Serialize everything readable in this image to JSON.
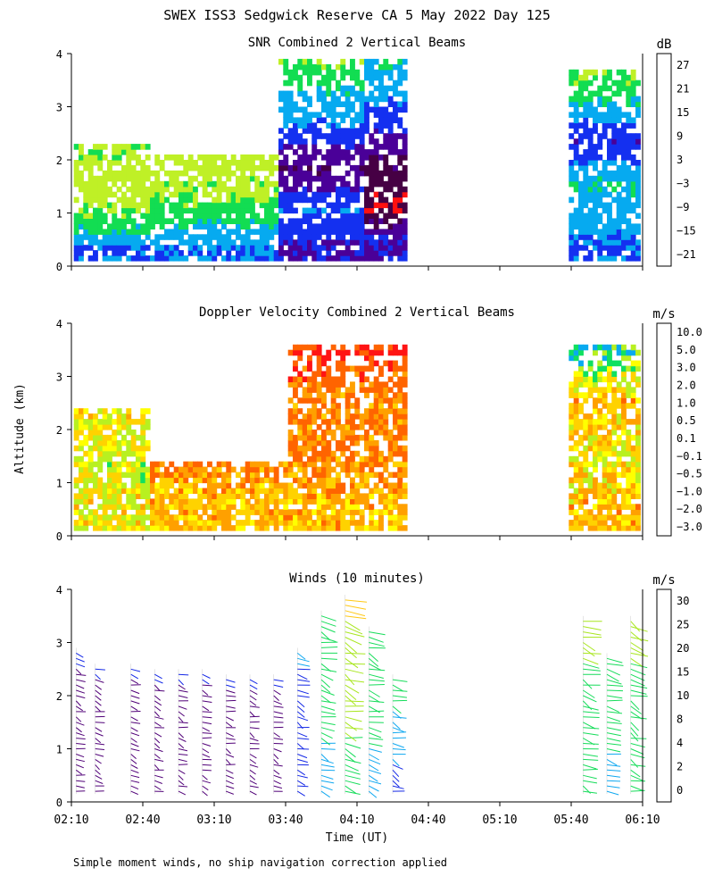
{
  "page": {
    "title": "SWEX ISS3 Sedgwick Reserve CA   5 May 2022 Day 125",
    "ylabel": "Altitude (km)",
    "xlabel": "Time (UT)",
    "footnote": "Simple moment winds, no ship navigation correction applied"
  },
  "chart_data": [
    {
      "type": "heatmap",
      "title": "SNR Combined 2 Vertical Beams",
      "xlabel": "Time (UT)",
      "ylabel": "Altitude (km)",
      "x_ticks": [
        "02:10",
        "02:40",
        "03:10",
        "03:40",
        "04:10",
        "04:40",
        "05:10",
        "05:40",
        "06:10"
      ],
      "y_ticks": [
        "0",
        "1",
        "2",
        "3",
        "4"
      ],
      "xlim": [
        "02:10",
        "06:10"
      ],
      "ylim": [
        0,
        4
      ],
      "data_segments": [
        [
          "02:11",
          "04:31"
        ],
        [
          "05:39",
          "06:08"
        ]
      ],
      "colorbar": {
        "unit": "dB",
        "labels": [
          "27",
          "21",
          "15",
          "9",
          "3",
          "−3",
          "−9",
          "−15",
          "−21"
        ],
        "colors": [
          "#ffd21e",
          "#ff8c00",
          "#ff1010",
          "#460044",
          "#4a0098",
          "#1430f0",
          "#06aaf0",
          "#12dd52",
          "#bff026"
        ]
      },
      "profiles": [
        {
          "time": "02:15",
          "values": [
            {
              "alt": 0.3,
              "value": -3
            },
            {
              "alt": 0.6,
              "value": -9
            },
            {
              "alt": 1.0,
              "value": -15
            },
            {
              "alt": 1.6,
              "value": -21
            },
            {
              "alt": 2.2,
              "value": -15
            }
          ]
        },
        {
          "time": "03:10",
          "values": [
            {
              "alt": 0.3,
              "value": -3
            },
            {
              "alt": 0.7,
              "value": -9
            },
            {
              "alt": 1.2,
              "value": -15
            },
            {
              "alt": 2.0,
              "value": -21
            }
          ]
        },
        {
          "time": "04:00",
          "values": [
            {
              "alt": 0.4,
              "value": 3
            },
            {
              "alt": 1.0,
              "value": -3
            },
            {
              "alt": 1.8,
              "value": 9
            },
            {
              "alt": 2.6,
              "value": -3
            },
            {
              "alt": 3.3,
              "value": -9
            },
            {
              "alt": 3.8,
              "value": -15
            }
          ]
        },
        {
          "time": "04:25",
          "values": [
            {
              "alt": 0.5,
              "value": 3
            },
            {
              "alt": 1.0,
              "value": 15
            },
            {
              "alt": 2.0,
              "value": 9
            },
            {
              "alt": 3.0,
              "value": -3
            },
            {
              "alt": 3.8,
              "value": -9
            }
          ]
        },
        {
          "time": "05:55",
          "values": [
            {
              "alt": 0.5,
              "value": -3
            },
            {
              "alt": 1.5,
              "value": -9
            },
            {
              "alt": 2.3,
              "value": 3
            },
            {
              "alt": 3.0,
              "value": -9
            },
            {
              "alt": 3.6,
              "value": -15
            }
          ]
        }
      ]
    },
    {
      "type": "heatmap",
      "title": "Doppler Velocity Combined 2 Vertical Beams",
      "xlabel": "Time (UT)",
      "ylabel": "Altitude (km)",
      "x_ticks": [
        "02:10",
        "02:40",
        "03:10",
        "03:40",
        "04:10",
        "04:40",
        "05:10",
        "05:40",
        "06:10"
      ],
      "y_ticks": [
        "0",
        "1",
        "2",
        "3",
        "4"
      ],
      "xlim": [
        "02:10",
        "06:10"
      ],
      "ylim": [
        0,
        4
      ],
      "data_segments": [
        [
          "02:11",
          "04:31"
        ],
        [
          "05:39",
          "06:08"
        ]
      ],
      "colorbar": {
        "unit": "m/s",
        "labels": [
          "10.0",
          "5.0",
          "3.0",
          "2.0",
          "1.0",
          "0.5",
          "0.1",
          "−0.1",
          "−0.5",
          "−1.0",
          "−2.0",
          "−3.0"
        ],
        "colors": [
          "#3c003c",
          "#5a00a0",
          "#2810e6",
          "#0a50f0",
          "#08aaf0",
          "#10e060",
          "#b8f020",
          "#ffff00",
          "#ffd200",
          "#ffa000",
          "#ff6400",
          "#ff1414"
        ]
      },
      "profiles": [
        {
          "time": "02:15",
          "values": [
            {
              "alt": 0.3,
              "value": -0.1
            },
            {
              "alt": 0.7,
              "value": -0.1
            },
            {
              "alt": 1.1,
              "value": 0.1
            },
            {
              "alt": 2.3,
              "value": -0.1
            }
          ]
        },
        {
          "time": "03:10",
          "values": [
            {
              "alt": 0.3,
              "value": -0.5
            },
            {
              "alt": 0.8,
              "value": -0.5
            },
            {
              "alt": 1.2,
              "value": -1.0
            }
          ]
        },
        {
          "time": "04:10",
          "values": [
            {
              "alt": 0.5,
              "value": -0.5
            },
            {
              "alt": 1.5,
              "value": -1.0
            },
            {
              "alt": 2.5,
              "value": -1.0
            },
            {
              "alt": 3.5,
              "value": -2.0
            }
          ]
        },
        {
          "time": "05:55",
          "values": [
            {
              "alt": 0.5,
              "value": -0.5
            },
            {
              "alt": 1.5,
              "value": -0.1
            },
            {
              "alt": 2.5,
              "value": -0.5
            },
            {
              "alt": 3.5,
              "value": 1.0
            }
          ]
        }
      ]
    },
    {
      "type": "scatter",
      "title": "Winds (10 minutes)",
      "xlabel": "Time (UT)",
      "ylabel": "Altitude (km)",
      "x_ticks": [
        "02:10",
        "02:40",
        "03:10",
        "03:40",
        "04:10",
        "04:40",
        "05:10",
        "05:40",
        "06:10"
      ],
      "y_ticks": [
        "0",
        "1",
        "2",
        "3",
        "4"
      ],
      "xlim": [
        "02:10",
        "06:10"
      ],
      "ylim": [
        0,
        4
      ],
      "colorbar": {
        "unit": "m/s",
        "labels": [
          "30",
          "25",
          "20",
          "15",
          "10",
          "8",
          "4",
          "2",
          "0"
        ],
        "colors": [
          "#ff2020",
          "#ff8c00",
          "#ffc814",
          "#a8e61e",
          "#16dc5a",
          "#10a8f0",
          "#1428e6",
          "#500078",
          "#000000"
        ]
      },
      "profile_times": [
        "02:12",
        "02:20",
        "02:35",
        "02:45",
        "02:55",
        "03:05",
        "03:15",
        "03:25",
        "03:35",
        "03:45",
        "03:55",
        "04:05",
        "04:15",
        "04:25",
        "05:45",
        "05:55",
        "06:05"
      ],
      "profile_tops_km": [
        2.9,
        2.6,
        2.6,
        2.5,
        2.5,
        2.5,
        2.4,
        2.4,
        2.4,
        2.9,
        3.6,
        3.9,
        3.3,
        2.4,
        3.5,
        2.8,
        3.5
      ],
      "typical_speed_m_s": [
        3,
        3,
        3,
        3,
        3,
        3,
        3,
        3,
        3,
        6,
        10,
        15,
        10,
        8,
        12,
        10,
        12
      ]
    }
  ]
}
